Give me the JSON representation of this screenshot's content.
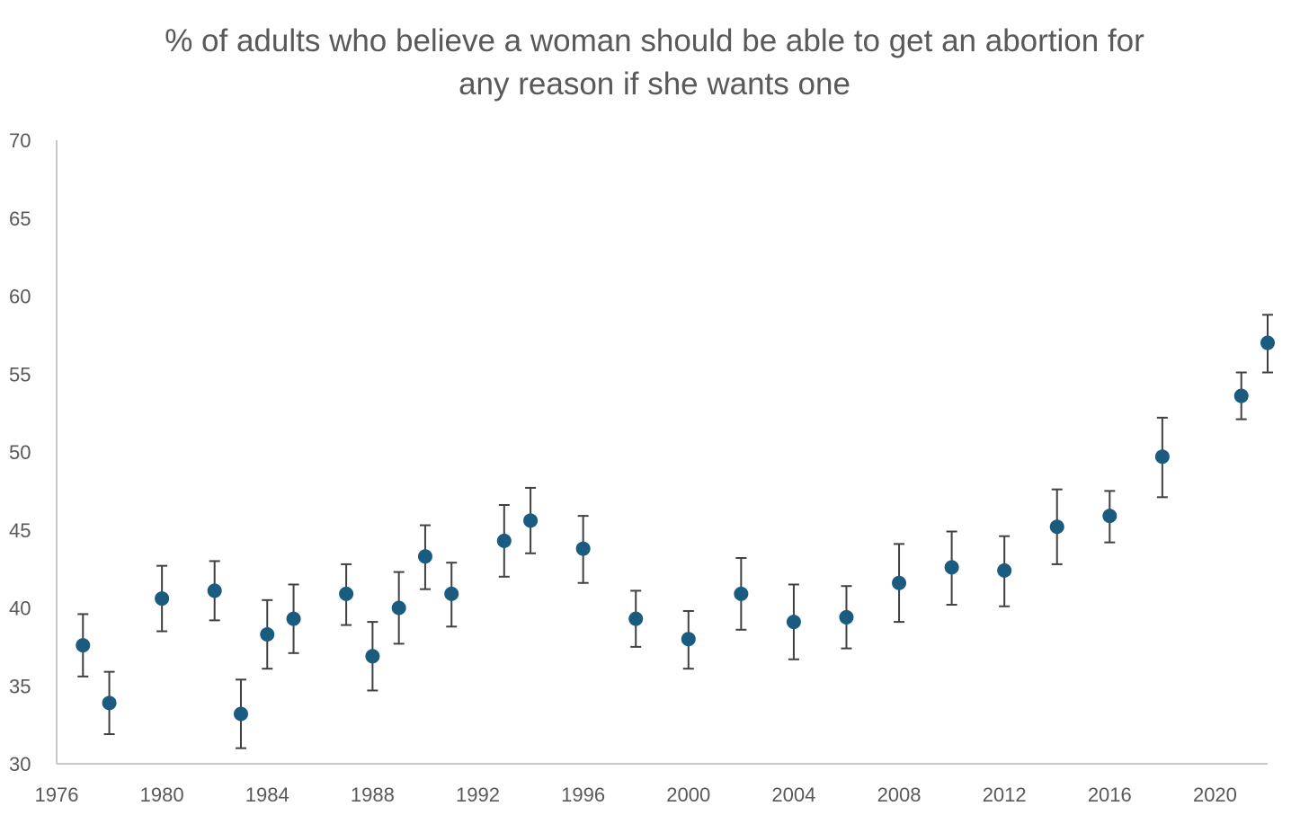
{
  "chart_data": {
    "type": "scatter",
    "title_lines": [
      "% of adults who believe a woman should be able to get an abortion for",
      "any reason if she wants one"
    ],
    "title": "% of adults who believe a woman should be able to get an abortion for any reason if she wants one",
    "xlabel": "",
    "ylabel": "",
    "xlim": [
      1976,
      2022
    ],
    "ylim": [
      30,
      70
    ],
    "x_ticks": [
      1976,
      1980,
      1984,
      1988,
      1992,
      1996,
      2000,
      2004,
      2008,
      2012,
      2016,
      2020
    ],
    "y_ticks": [
      30,
      35,
      40,
      45,
      50,
      55,
      60,
      65,
      70
    ],
    "grid": false,
    "legend": "none",
    "series": [
      {
        "x": [
          1977,
          1978,
          1980,
          1982,
          1983,
          1984,
          1985,
          1987,
          1988,
          1989,
          1990,
          1991,
          1993,
          1994,
          1996,
          1998,
          2000,
          2002,
          2004,
          2006,
          2008,
          2010,
          2012,
          2014,
          2016,
          2018,
          2021,
          2022
        ],
        "y": [
          37.6,
          33.9,
          40.6,
          41.1,
          33.2,
          38.3,
          39.3,
          40.9,
          36.9,
          40.0,
          43.3,
          40.9,
          44.3,
          45.6,
          43.8,
          39.3,
          38.0,
          40.9,
          39.1,
          39.4,
          41.6,
          42.6,
          42.4,
          45.2,
          45.9,
          49.7,
          53.6,
          57.0
        ],
        "error_low": [
          35.6,
          31.9,
          38.5,
          39.2,
          31.0,
          36.1,
          37.1,
          38.9,
          34.7,
          37.7,
          41.2,
          38.8,
          42.0,
          43.5,
          41.6,
          37.5,
          36.1,
          38.6,
          36.7,
          37.4,
          39.1,
          40.2,
          40.1,
          42.8,
          44.2,
          47.1,
          52.1,
          55.1
        ],
        "error_high": [
          39.6,
          35.9,
          42.7,
          43.0,
          35.4,
          40.5,
          41.5,
          42.8,
          39.1,
          42.3,
          45.3,
          42.9,
          46.6,
          47.7,
          45.9,
          41.1,
          39.8,
          43.2,
          41.5,
          41.4,
          44.1,
          44.9,
          44.6,
          47.6,
          47.5,
          52.2,
          55.1,
          58.8
        ]
      }
    ],
    "colors": {
      "marker": "#1a5b80",
      "error_bar": "#404040",
      "axis": "#c8c8c8",
      "text": "#595959"
    }
  }
}
